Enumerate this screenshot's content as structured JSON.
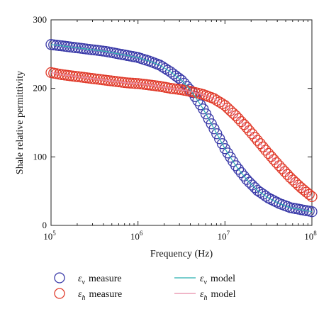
{
  "chart_data": {
    "type": "scatter",
    "title": "",
    "xlabel": "Frequency (Hz)",
    "ylabel": "Shale relative permittivity",
    "x_scale": "log",
    "xlim": [
      100000,
      100000000
    ],
    "ylim": [
      0,
      300
    ],
    "x_ticks": [
      {
        "base": "10",
        "exp": "5",
        "value": 100000
      },
      {
        "base": "10",
        "exp": "6",
        "value": 1000000
      },
      {
        "base": "10",
        "exp": "7",
        "value": 10000000
      },
      {
        "base": "10",
        "exp": "8",
        "value": 100000000
      }
    ],
    "y_ticks": [
      "0",
      "100",
      "200",
      "300"
    ],
    "grid": false,
    "legend_position": "below the plot",
    "series": [
      {
        "name": "measure",
        "symbol": "ε",
        "subscript": "v",
        "marker": "circle",
        "color": "#3a3aa8",
        "x": [
          100000,
          133352,
          177828,
          237137,
          316228,
          421697,
          562341,
          749894,
          1000000,
          1333521,
          1778279,
          2371374,
          3162278,
          4216965,
          5623413,
          7498942,
          10000000,
          13335214,
          17782794,
          23713737,
          31622777,
          42169650,
          56234133,
          74989421,
          100000000
        ],
        "y": [
          264,
          262,
          260,
          258,
          256,
          254,
          251,
          248,
          245,
          240,
          234,
          224,
          212,
          194,
          170,
          141,
          112,
          87,
          67,
          51,
          40,
          32,
          26,
          23,
          20
        ]
      },
      {
        "name": "measure",
        "symbol": "ε",
        "subscript": "h",
        "marker": "circle",
        "color": "#e03a2a",
        "x": [
          100000,
          133352,
          177828,
          237137,
          316228,
          421697,
          562341,
          749894,
          1000000,
          1333521,
          1778279,
          2371374,
          3162278,
          4216965,
          5623413,
          7498942,
          10000000,
          13335214,
          17782794,
          23713737,
          31622777,
          42169650,
          56234133,
          74989421,
          100000000
        ],
        "y": [
          223,
          220,
          218,
          216,
          214,
          212,
          210,
          208,
          207,
          205,
          203,
          200,
          198,
          195,
          191,
          185,
          175,
          160,
          143,
          124,
          105,
          87,
          70,
          55,
          42
        ]
      },
      {
        "name": "model",
        "symbol": "ε",
        "subscript": "v",
        "marker": "line",
        "color": "#2ab0b0",
        "x": [
          100000,
          133352,
          177828,
          237137,
          316228,
          421697,
          562341,
          749894,
          1000000,
          1333521,
          1778279,
          2371374,
          3162278,
          4216965,
          5623413,
          7498942,
          10000000,
          13335214,
          17782794,
          23713737,
          31622777,
          42169650,
          56234133,
          74989421,
          100000000
        ],
        "y": [
          264,
          262,
          260,
          258,
          256,
          254,
          251,
          248,
          245,
          240,
          234,
          224,
          212,
          194,
          170,
          141,
          112,
          87,
          67,
          51,
          40,
          32,
          26,
          23,
          20
        ]
      },
      {
        "name": "model",
        "symbol": "ε",
        "subscript": "h",
        "marker": "line",
        "color": "#e88aa8",
        "x": [
          100000,
          133352,
          177828,
          237137,
          316228,
          421697,
          562341,
          749894,
          1000000,
          1333521,
          1778279,
          2371374,
          3162278,
          4216965,
          5623413,
          7498942,
          10000000,
          13335214,
          17782794,
          23713737,
          31622777,
          42169650,
          56234133,
          74989421,
          100000000
        ],
        "y": [
          223,
          220,
          218,
          216,
          214,
          212,
          210,
          208,
          207,
          205,
          203,
          200,
          198,
          195,
          191,
          185,
          175,
          160,
          143,
          124,
          105,
          87,
          70,
          55,
          42
        ]
      }
    ]
  }
}
